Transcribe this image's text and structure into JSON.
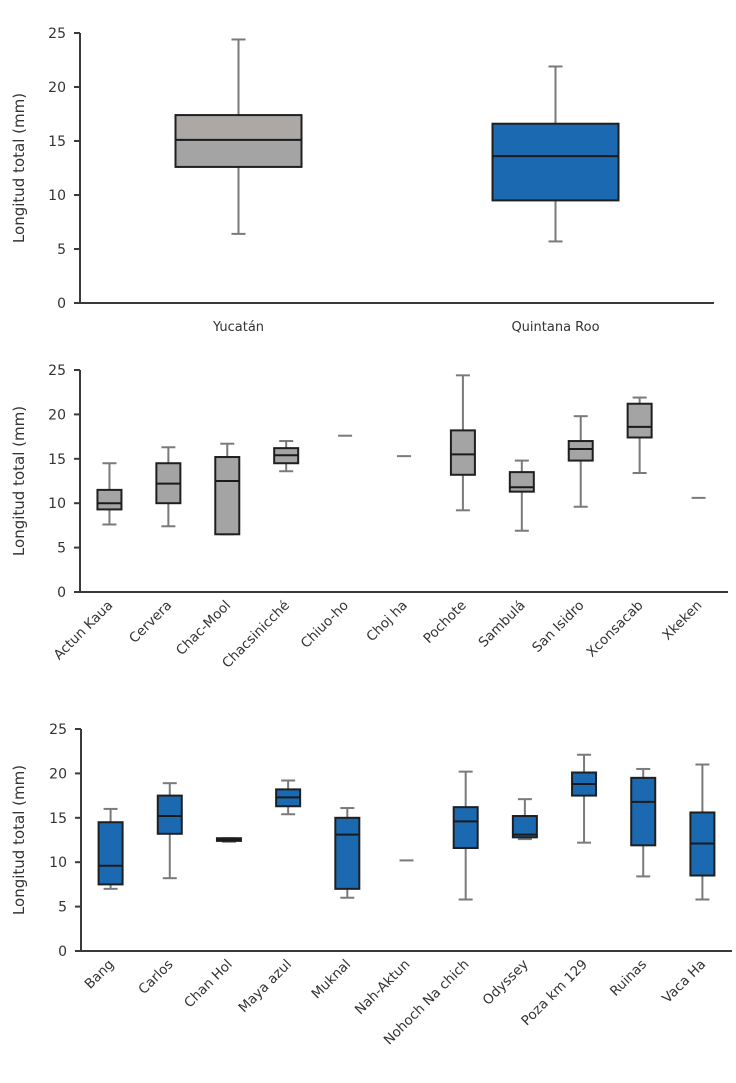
{
  "colors": {
    "yucatan_fill": "#a4a4a4",
    "yucatan_fill_upper": "#aba8a6",
    "quintana_fill": "#1b6ab1",
    "whisker": "#7a7a7a",
    "axis": "#3a3a3a"
  },
  "chart_data": [
    {
      "type": "box",
      "title": "",
      "xlabel": "",
      "ylabel": "Longitud total (mm)",
      "ylim": [
        0,
        25
      ],
      "yticks": [
        "0",
        "5",
        "10",
        "15",
        "20",
        "25"
      ],
      "grid": false,
      "categories": [
        "Yucatán",
        "Quintana Roo"
      ],
      "fills": [
        "gray",
        "blue"
      ],
      "series": [
        {
          "name": "Yucatán",
          "min": 6.4,
          "q1": 12.6,
          "median": 15.1,
          "q3": 17.4,
          "max": 24.4
        },
        {
          "name": "Quintana Roo",
          "min": 5.7,
          "q1": 9.5,
          "median": 13.6,
          "q3": 16.6,
          "max": 21.9
        }
      ]
    },
    {
      "type": "box",
      "title": "",
      "xlabel": "",
      "ylabel": "Longitud total (mm)",
      "ylim": [
        0,
        25
      ],
      "yticks": [
        "0",
        "5",
        "10",
        "15",
        "20",
        "25"
      ],
      "grid": false,
      "fill": "gray",
      "categories": [
        "Actun Kaua",
        "Cervera",
        "Chac-Mool",
        "Chacsinicché",
        "Chiuo-ho",
        "Choj ha",
        "Pochote",
        "Sambulá",
        "San Isidro",
        "Xconsacab",
        "Xkeken"
      ],
      "series": [
        {
          "name": "Actun Kaua",
          "min": 7.6,
          "q1": 9.3,
          "median": 10.0,
          "q3": 11.5,
          "max": 14.5
        },
        {
          "name": "Cervera",
          "min": 7.4,
          "q1": 10.0,
          "median": 12.2,
          "q3": 14.5,
          "max": 16.3
        },
        {
          "name": "Chac-Mool",
          "min": 6.5,
          "q1": 6.5,
          "median": 12.5,
          "q3": 15.2,
          "max": 16.7
        },
        {
          "name": "Chacsinicché",
          "min": 13.6,
          "q1": 14.5,
          "median": 15.4,
          "q3": 16.2,
          "max": 17.0
        },
        {
          "name": "Chiuo-ho",
          "single": 17.6
        },
        {
          "name": "Choj ha",
          "single": 15.3
        },
        {
          "name": "Pochote",
          "min": 9.2,
          "q1": 13.2,
          "median": 15.5,
          "q3": 18.2,
          "max": 24.4
        },
        {
          "name": "Sambulá",
          "min": 6.9,
          "q1": 11.3,
          "median": 11.8,
          "q3": 13.5,
          "max": 14.8
        },
        {
          "name": "San Isidro",
          "min": 9.6,
          "q1": 14.8,
          "median": 16.1,
          "q3": 17.0,
          "max": 19.8
        },
        {
          "name": "Xconsacab",
          "min": 13.4,
          "q1": 17.4,
          "median": 18.6,
          "q3": 21.2,
          "max": 21.9
        },
        {
          "name": "Xkeken",
          "single": 10.6
        }
      ]
    },
    {
      "type": "box",
      "title": "",
      "xlabel": "",
      "ylabel": "Longitud total (mm)",
      "ylim": [
        0,
        25
      ],
      "yticks": [
        "0",
        "5",
        "10",
        "15",
        "20",
        "25"
      ],
      "grid": false,
      "fill": "blue",
      "categories": [
        "Bang",
        "Carlos",
        "Chan Hol",
        "Maya azul",
        "Muknal",
        "Nah-Aktun",
        "Nohoch Na chich",
        "Odyssey",
        "Poza km 129",
        "Ruinas",
        "Vaca Ha"
      ],
      "series": [
        {
          "name": "Bang",
          "min": 7.0,
          "q1": 7.5,
          "median": 9.6,
          "q3": 14.5,
          "max": 16.0
        },
        {
          "name": "Carlos",
          "min": 8.2,
          "q1": 13.2,
          "median": 15.2,
          "q3": 17.5,
          "max": 18.9
        },
        {
          "name": "Chan Hol",
          "min": 12.3,
          "q1": 12.4,
          "median": 12.5,
          "q3": 12.7,
          "max": 12.7
        },
        {
          "name": "Maya azul",
          "min": 15.4,
          "q1": 16.3,
          "median": 17.3,
          "q3": 18.2,
          "max": 19.2
        },
        {
          "name": "Muknal",
          "min": 6.0,
          "q1": 7.0,
          "median": 13.1,
          "q3": 15.0,
          "max": 16.1
        },
        {
          "name": "Nah-Aktun",
          "single": 10.2
        },
        {
          "name": "Nohoch Na chich",
          "min": 5.8,
          "q1": 11.6,
          "median": 14.6,
          "q3": 16.2,
          "max": 20.2
        },
        {
          "name": "Odyssey",
          "min": 12.6,
          "q1": 12.8,
          "median": 13.1,
          "q3": 15.2,
          "max": 17.1
        },
        {
          "name": "Poza km 129",
          "min": 12.2,
          "q1": 17.5,
          "median": 18.8,
          "q3": 20.1,
          "max": 22.1
        },
        {
          "name": "Ruinas",
          "min": 8.4,
          "q1": 11.9,
          "median": 16.8,
          "q3": 19.5,
          "max": 20.5
        },
        {
          "name": "Vaca Ha",
          "min": 5.8,
          "q1": 8.5,
          "median": 12.1,
          "q3": 15.6,
          "max": 21.0
        }
      ]
    }
  ]
}
